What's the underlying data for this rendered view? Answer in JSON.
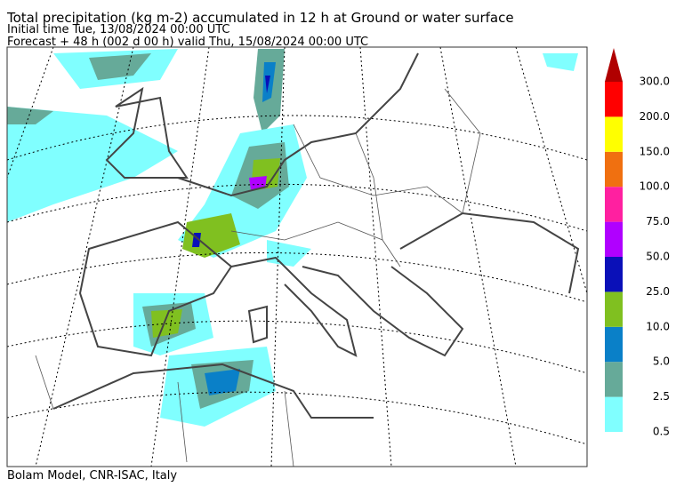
{
  "header": {
    "title": "Total precipitation (kg m-2) accumulated in  12 h at Ground or water surface",
    "initial_time": "Initial time  Tue, 13/08/2024  00:00 UTC",
    "forecast": "Forecast  +  48 h  (002 d 00 h)  valid Thu, 15/08/2024 00:00 UTC"
  },
  "footer": "Bolam Model, CNR-ISAC, Italy",
  "colorbar": {
    "levels": [
      0.5,
      2.5,
      {
        "value": 5,
        "label": "5.0"
      },
      {
        "value": 10,
        "label": "10.0"
      },
      {
        "value": 25,
        "label": "25.0"
      },
      {
        "value": 50,
        "label": "50.0"
      },
      {
        "value": 75,
        "label": "75.0"
      },
      {
        "value": 100,
        "label": "100.0"
      },
      {
        "value": 150,
        "label": "150.0"
      },
      {
        "value": 200,
        "label": "200.0"
      },
      {
        "value": 300,
        "label": "300.0"
      }
    ],
    "colors": [
      "#80ffff",
      "#66aa99",
      "#0a80c8",
      "#80c020",
      "#0a10b8",
      "#b000ff",
      "#ff20a0",
      "#f07010",
      "#ffff00",
      "#ff0000",
      "#b00000"
    ]
  }
}
